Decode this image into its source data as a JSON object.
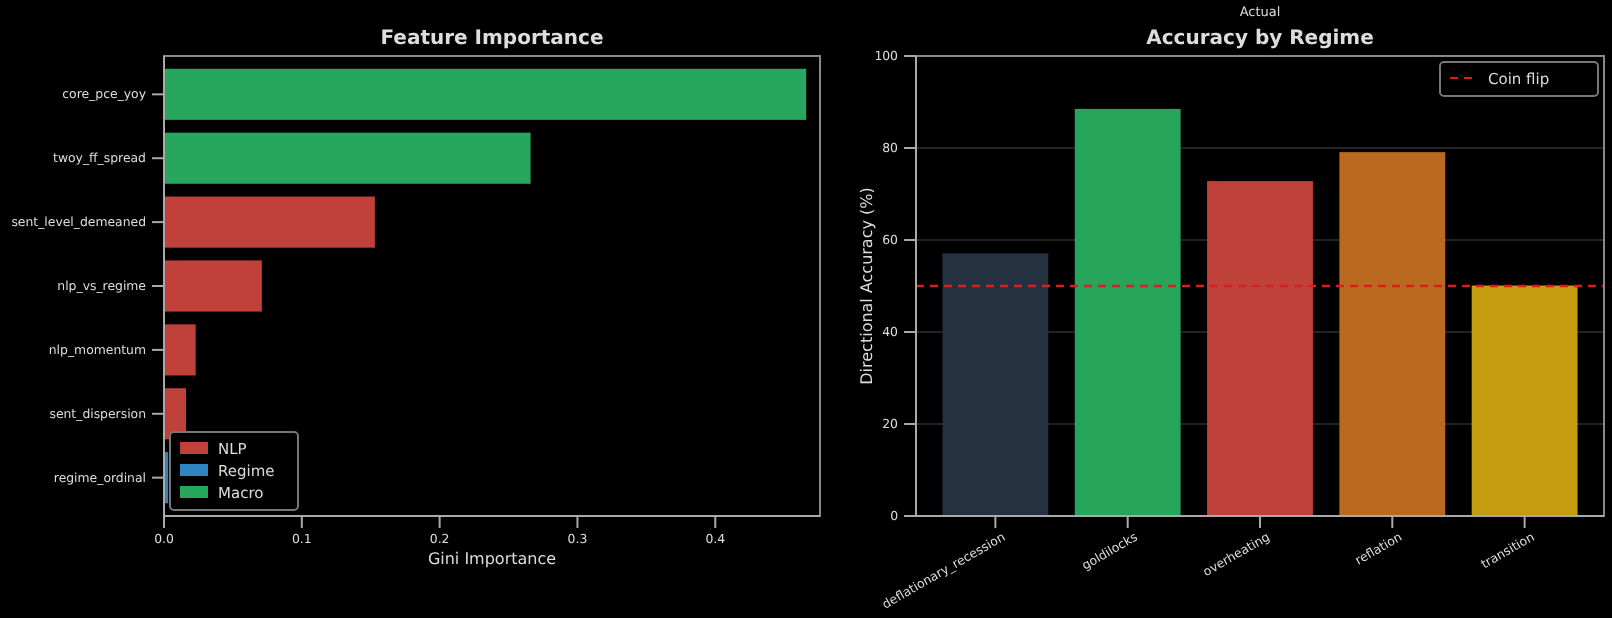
{
  "chart_data": [
    {
      "type": "bar",
      "orientation": "horizontal",
      "title": "Feature Importance",
      "xlabel": "Gini Importance",
      "categories": [
        "core_pce_yoy",
        "twoy_ff_spread",
        "sent_level_demeaned",
        "nlp_vs_regime",
        "nlp_momentum",
        "sent_dispersion",
        "regime_ordinal"
      ],
      "series": [
        {
          "name": "NLP",
          "color": "#c0413a",
          "values": [
            null,
            null,
            0.153,
            0.071,
            0.023,
            0.016,
            null
          ]
        },
        {
          "name": "Regime",
          "color": "#2e86c1",
          "values": [
            null,
            null,
            null,
            null,
            null,
            null,
            0.003
          ]
        },
        {
          "name": "Macro",
          "color": "#27a65d",
          "values": [
            0.466,
            0.266,
            null,
            null,
            null,
            null,
            null
          ]
        }
      ],
      "xlim": [
        0,
        0.476
      ],
      "xticks": [
        {
          "value": 0,
          "label": "0.0"
        },
        0.1,
        0.2,
        0.3,
        0.4
      ],
      "legend": "bottom left",
      "grid": false
    },
    {
      "type": "bar",
      "title": "Accuracy by Regime",
      "ylabel": "Directional Accuracy (%)",
      "categories": [
        "deflationary_recession",
        "goldilocks",
        "overheating",
        "reflation",
        "transition"
      ],
      "values": [
        57.1,
        88.5,
        72.8,
        79.1,
        50.1
      ],
      "colors": [
        "#243140",
        "#27a55b",
        "#c0403a",
        "#bb6820",
        "#c39c10"
      ],
      "ylim": [
        0,
        100
      ],
      "yticks": [
        0,
        20,
        40,
        60,
        80,
        100
      ],
      "grid": "y",
      "ref_lines": [
        {
          "axis": "y",
          "value": 50,
          "label": "Coin flip",
          "color": "#d62020",
          "line_style": "dashed"
        }
      ],
      "legend": "top right",
      "annotations": [
        "Actual"
      ]
    }
  ]
}
